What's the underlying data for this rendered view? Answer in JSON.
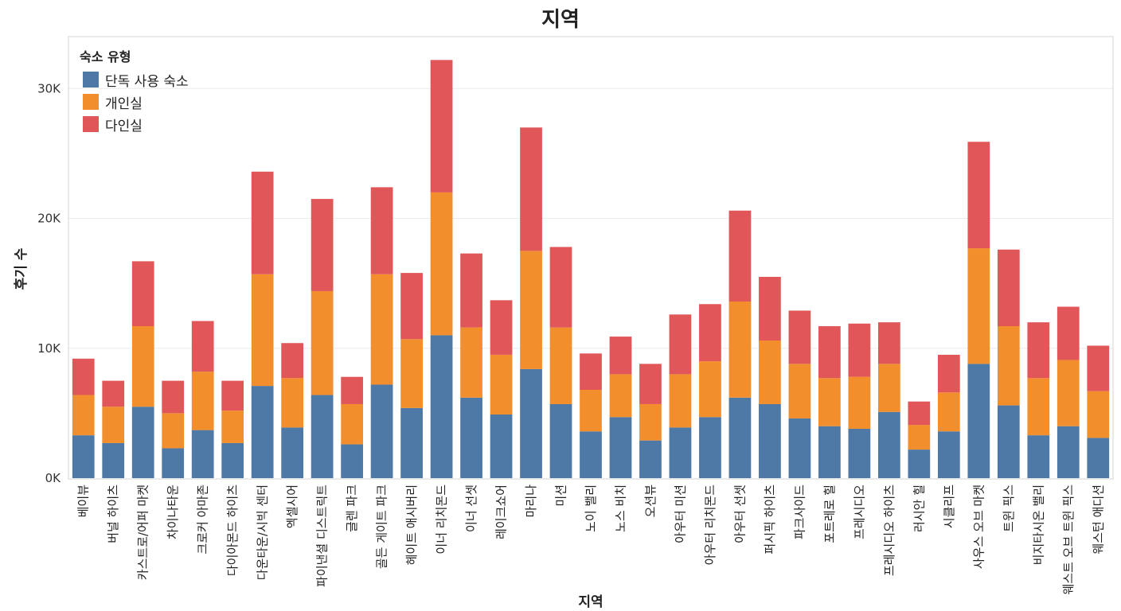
{
  "chart_data": {
    "type": "bar",
    "stacked": true,
    "title": "지역",
    "xlabel": "지역",
    "ylabel": "후기 수",
    "ylim": [
      0,
      34000
    ],
    "y_ticks": [
      {
        "value": 0,
        "label": "0K"
      },
      {
        "value": 10000,
        "label": "10K"
      },
      {
        "value": 20000,
        "label": "20K"
      },
      {
        "value": 30000,
        "label": "30K"
      }
    ],
    "legend": {
      "title": "숙소 유형",
      "position": "top-left"
    },
    "grid": true,
    "categories": [
      "베이뷰",
      "버널 하이츠",
      "카스트로/어퍼 마켓",
      "차이나타운",
      "크로커 아마존",
      "다이아몬드 하이츠",
      "다운타운/시빅 센터",
      "엑셀시어",
      "파이낸셜 디스트릭트",
      "글렌 파크",
      "골든 게이트 파크",
      "헤이트 애시버리",
      "이너 리치몬드",
      "이너 선셋",
      "레이크쇼어",
      "마리나",
      "미션",
      "노이 밸리",
      "노스 비치",
      "오션뷰",
      "아우터 미션",
      "아우터 리치몬드",
      "아우터 선셋",
      "퍼시픽 하이츠",
      "파크사이드",
      "포트레로 힐",
      "프레시디오",
      "프레시디오 하이츠",
      "러시안 힐",
      "시클리프",
      "사우스 오브 마켓",
      "트윈 픽스",
      "비지타시온 밸리",
      "웨스트 오브 트윈 픽스",
      "웨스턴 애디션"
    ],
    "series": [
      {
        "name": "단독 사용 숙소",
        "color": "#4e79a7",
        "values": [
          3300,
          2700,
          5500,
          2300,
          3700,
          2700,
          7100,
          3900,
          6400,
          2600,
          7200,
          5400,
          11000,
          6200,
          4900,
          8400,
          5700,
          3600,
          4700,
          2900,
          3900,
          4700,
          6200,
          5700,
          4600,
          4000,
          3800,
          5100,
          2200,
          3600,
          8800,
          5600,
          3300,
          4000,
          3100
        ]
      },
      {
        "name": "개인실",
        "color": "#f28e2b",
        "values": [
          3100,
          2800,
          6200,
          2700,
          4500,
          2500,
          8600,
          3800,
          8000,
          3100,
          8500,
          5300,
          11000,
          5400,
          4600,
          9100,
          5900,
          3200,
          3300,
          2800,
          4100,
          4300,
          7400,
          4900,
          4200,
          3700,
          4000,
          3700,
          1900,
          3000,
          8900,
          6100,
          4400,
          5100,
          3600
        ]
      },
      {
        "name": "다인실",
        "color": "#e15759",
        "values": [
          2800,
          2000,
          5000,
          2500,
          3900,
          2300,
          7900,
          2700,
          7100,
          2100,
          6700,
          5100,
          10200,
          5700,
          4200,
          9500,
          6200,
          2800,
          2900,
          3100,
          4600,
          4400,
          7000,
          4900,
          4100,
          4000,
          4100,
          3200,
          1800,
          2900,
          8200,
          5900,
          4300,
          4100,
          3500
        ]
      }
    ]
  }
}
